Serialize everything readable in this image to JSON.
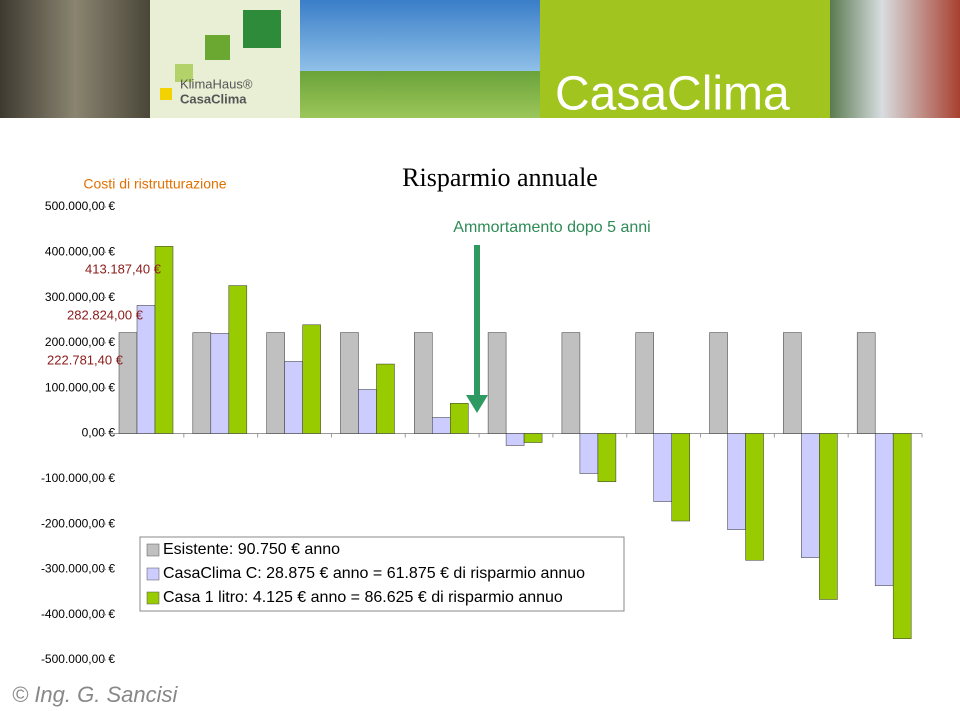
{
  "header": {
    "logo_top": "KlimaHaus®",
    "logo_bottom": "CasaClima",
    "banner": "CasaClima"
  },
  "chart_data": {
    "type": "bar",
    "title": "Risparmio annuale",
    "y_label": "Costi di ristrutturazione",
    "annotation": "Ammortamento dopo 5 anni",
    "categories": [
      null,
      null,
      null,
      null,
      null,
      null,
      null,
      null,
      null,
      null,
      null
    ],
    "series": [
      {
        "name": "Esistente: 90.750 € anno",
        "color": "#c0c0c0",
        "values": [
          222781.4,
          222781.4,
          222781.4,
          222781.4,
          222781.4,
          222781.4,
          222781.4,
          222781.4,
          222781.4,
          222781.4,
          222781.4
        ],
        "value_labels": [
          "222.781,40 €",
          null,
          null,
          null,
          null,
          null,
          null,
          null,
          null,
          null,
          null
        ]
      },
      {
        "name": "CasaClima C: 28.875 € anno = 61.875 € di risparmio annuo",
        "color": "#ccccff",
        "values": [
          282824,
          220949,
          159074,
          97199,
          35324,
          -26551,
          -88426,
          -150301,
          -212176,
          -274051,
          -335926
        ],
        "value_labels": [
          "282.824,00 €",
          null,
          null,
          null,
          null,
          null,
          null,
          null,
          null,
          null,
          null
        ]
      },
      {
        "name": "Casa 1 litro: 4.125 € anno = 86.625 € di risparmio annuo",
        "color": "#99cc00",
        "values": [
          413187.4,
          326562.4,
          239937.4,
          153312.4,
          66687.4,
          -19937.6,
          -106562.6,
          -193187.6,
          -279812.6,
          -366437.6,
          -453062.6
        ],
        "value_labels": [
          "413.187,40 €",
          null,
          null,
          null,
          null,
          null,
          null,
          null,
          null,
          null,
          null
        ]
      }
    ],
    "ylim": [
      -500000,
      500000
    ],
    "yticks": [
      {
        "value": -500000,
        "label": "-500.000,00 €"
      },
      {
        "value": -400000,
        "label": "-400.000,00 €"
      },
      {
        "value": -300000,
        "label": "-300.000,00 €"
      },
      {
        "value": -200000,
        "label": "-200.000,00 €"
      },
      {
        "value": -100000,
        "label": "-100.000,00 €"
      },
      {
        "value": 0,
        "label": "0,00 €"
      },
      {
        "value": 100000,
        "label": "100.000,00 €"
      },
      {
        "value": 200000,
        "label": "200.000,00 €"
      },
      {
        "value": 300000,
        "label": "300.000,00 €"
      },
      {
        "value": 400000,
        "label": "400.000,00 €"
      },
      {
        "value": 500000,
        "label": "500.000,00 €"
      }
    ],
    "grid": false,
    "legend": "bottom-left"
  }
}
